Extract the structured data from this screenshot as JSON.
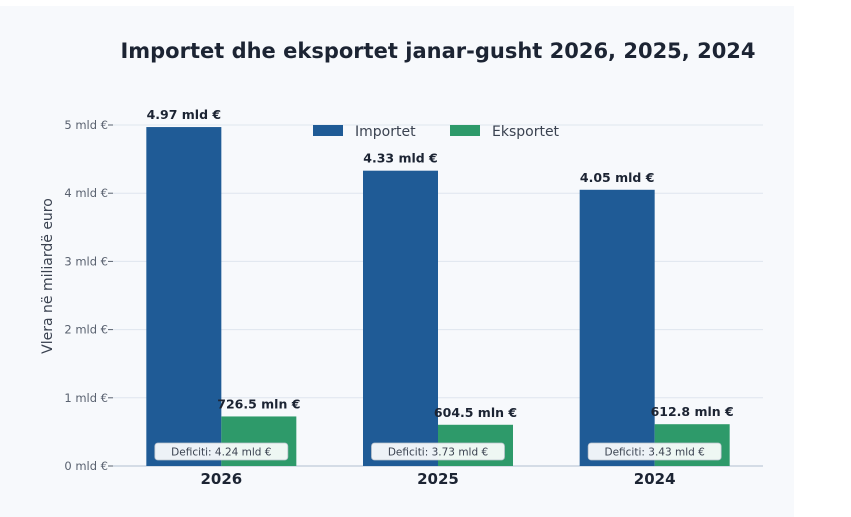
{
  "chart_data": {
    "type": "bar",
    "title": "Importet dhe eksportet janar-gusht 2026, 2025, 2024",
    "ylabel": "Vlera në miliardë euro",
    "xlabel": "",
    "categories": [
      "2026",
      "2025",
      "2024"
    ],
    "ylim": [
      0,
      5.5
    ],
    "yticks": [
      0,
      1,
      2,
      3,
      4,
      5
    ],
    "ytick_labels": [
      "0 mld €",
      "1 mld €",
      "2 mld €",
      "3 mld €",
      "4 mld €",
      "5 mld €"
    ],
    "grid": "horizontal",
    "legend_position": "top-center",
    "series": [
      {
        "name": "Importet",
        "color": "#1f5b96",
        "values": [
          4.97,
          4.33,
          4.05
        ],
        "labels": [
          "4.97 mld €",
          "4.33 mld €",
          "4.05 mld €"
        ]
      },
      {
        "name": "Eksportet",
        "color": "#2e9a6a",
        "values": [
          0.7265,
          0.6045,
          0.6128
        ],
        "labels": [
          "726.5 mln €",
          "604.5 mln €",
          "612.8 mln €"
        ]
      }
    ],
    "annotations": [
      "Deficiti: 4.24 mld €",
      "Deficiti: 3.73 mld €",
      "Deficiti: 3.43 mld €"
    ]
  }
}
